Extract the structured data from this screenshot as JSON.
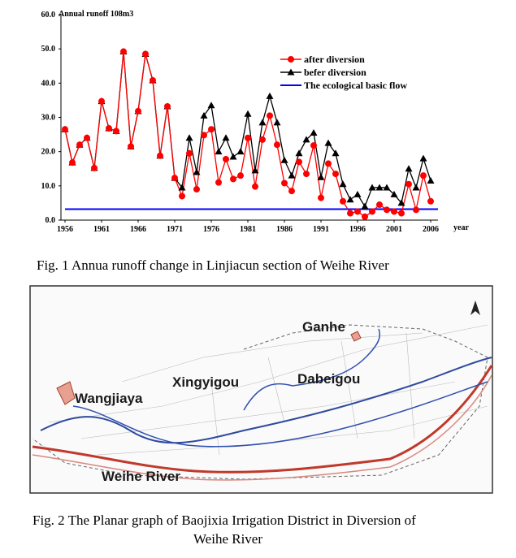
{
  "chart_data": {
    "type": "line",
    "y_label": "Annual runoff 108m3",
    "x_label": "year",
    "x": [
      1956,
      1957,
      1958,
      1959,
      1960,
      1961,
      1962,
      1963,
      1964,
      1965,
      1966,
      1967,
      1968,
      1969,
      1970,
      1971,
      1972,
      1973,
      1974,
      1975,
      1976,
      1977,
      1978,
      1979,
      1980,
      1981,
      1982,
      1983,
      1984,
      1985,
      1986,
      1987,
      1988,
      1989,
      1990,
      1991,
      1992,
      1993,
      1994,
      1995,
      1996,
      1997,
      1998,
      1999,
      2000,
      2001,
      2002,
      2003,
      2004,
      2005,
      2006
    ],
    "series": [
      {
        "name": "befer diversion",
        "color": "#000000",
        "marker": "triangle",
        "values": [
          26.5,
          16.8,
          22,
          24,
          15.2,
          34.7,
          26.8,
          26,
          49.2,
          21.5,
          31.8,
          48.5,
          40.8,
          18.8,
          33.2,
          12.3,
          9.5,
          24,
          14,
          30.5,
          33.5,
          20,
          24,
          18.5,
          20,
          31,
          14.5,
          28.5,
          36.2,
          28.5,
          17.5,
          13,
          19.5,
          23.5,
          25.5,
          12.5,
          22.5,
          19.5,
          10.5,
          6,
          7.5,
          4,
          9.5,
          9.5,
          9.5,
          7.5,
          5,
          15,
          9.5,
          18,
          11.5
        ]
      },
      {
        "name": "after diversion",
        "color": "#ff0000",
        "marker": "circle",
        "values": [
          26.5,
          16.8,
          22,
          24,
          15.2,
          34.7,
          26.8,
          26,
          49.2,
          21.5,
          31.8,
          48.5,
          40.8,
          18.8,
          33.2,
          12.3,
          7,
          19.5,
          9,
          24.8,
          26.5,
          11,
          17.8,
          12,
          13,
          24,
          9.8,
          23.5,
          30.5,
          22,
          10.8,
          8.5,
          17,
          13.5,
          21.8,
          6.5,
          16.5,
          13.5,
          5.5,
          2,
          2.5,
          1,
          2.5,
          4.5,
          3,
          2.5,
          2,
          10.5,
          3,
          13,
          5.5
        ]
      }
    ],
    "reference_line": {
      "name": "The ecological basic flow",
      "value": 3.2,
      "color": "#0000ff"
    },
    "legend_order": [
      1,
      0
    ],
    "xlim": [
      1956,
      2007
    ],
    "xticks": [
      1956,
      1961,
      1966,
      1971,
      1976,
      1981,
      1986,
      1991,
      1996,
      2001,
      2006
    ],
    "ylim": [
      0,
      60
    ],
    "yticks": [
      {
        "value": 0,
        "label": "0.0"
      },
      {
        "value": 10,
        "label": "10.0"
      },
      {
        "value": 20,
        "label": "20.0"
      },
      {
        "value": 30,
        "label": "30.0"
      },
      {
        "value": 40,
        "label": "40.0"
      },
      {
        "value": 50,
        "label": "50.0"
      },
      {
        "value": 60,
        "label": "60.0"
      }
    ]
  },
  "captions": [
    "Fig.   1 Annua runoff change in Linjiacun section of Weihe River",
    "Fig.   2 The Planar graph of Baojixia Irrigation District in Diversion of",
    "Weihe River"
  ],
  "map": {
    "labels": [
      "Ganhe",
      "Xingyigou",
      "Dabeigou",
      "Wangjiaya",
      "Weihe River"
    ]
  }
}
